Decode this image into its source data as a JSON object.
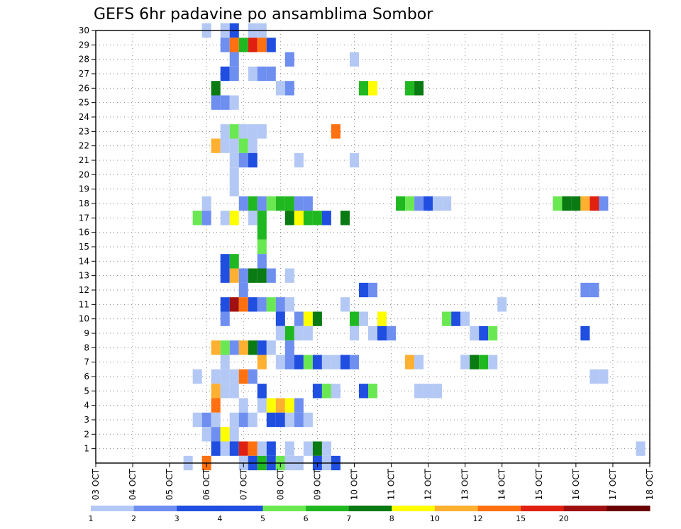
{
  "chart_data": {
    "type": "heatmap",
    "title": "GEFS 6hr padavine po ansamblima Sombor",
    "xlabel": "",
    "ylabel": "",
    "x_ticks": [
      "03 OCT",
      "04 OCT",
      "05 OCT",
      "06 OCT",
      "07 OCT",
      "08 OCT",
      "09 OCT",
      "10 OCT",
      "11 OCT",
      "12 OCT",
      "13 OCT",
      "14 OCT",
      "15 OCT",
      "16 OCT",
      "17 OCT",
      "18 OCT"
    ],
    "y_ticks": [
      1,
      2,
      3,
      4,
      5,
      6,
      7,
      8,
      9,
      10,
      11,
      12,
      13,
      14,
      15,
      16,
      17,
      18,
      19,
      20,
      21,
      22,
      23,
      24,
      25,
      26,
      27,
      28,
      29,
      30
    ],
    "x_range": [
      "03 OCT 00Z",
      "18 OCT 00Z"
    ],
    "y_range": [
      0,
      30
    ],
    "grid": true,
    "color_levels": [
      {
        "label": "1",
        "color": "#b4c8f5"
      },
      {
        "label": "2",
        "color": "#6e8ef0"
      },
      {
        "label": "3",
        "color": "#1f4ee0"
      },
      {
        "label": "4",
        "color": "#1f4ee0"
      },
      {
        "label": "5",
        "color": "#6ae852"
      },
      {
        "label": "6",
        "color": "#20b820"
      },
      {
        "label": "7",
        "color": "#0a7a12"
      },
      {
        "label": "8",
        "color": "#ffff00"
      },
      {
        "label": "10",
        "color": "#ffb030"
      },
      {
        "label": "12",
        "color": "#ff7010"
      },
      {
        "label": "15",
        "color": "#e02010"
      },
      {
        "label": "20",
        "color": "#a01010"
      },
      {
        "label": "",
        "color": "#6a0000"
      }
    ],
    "colorbar_labels": [
      "1",
      "2",
      "3",
      "4",
      "5",
      "6",
      "7",
      "8",
      "10",
      "12",
      "15",
      "20"
    ],
    "cells_note": "each cell: [member, day_offset_from_03OCT(step 0.25 = 6hr), level_index]",
    "cells": [
      [
        30,
        3.0,
        0
      ],
      [
        30,
        3.5,
        0
      ],
      [
        30,
        3.75,
        2
      ],
      [
        30,
        4.25,
        0
      ],
      [
        30,
        4.5,
        0
      ],
      [
        29,
        3.5,
        1
      ],
      [
        29,
        3.75,
        9
      ],
      [
        29,
        4.0,
        5
      ],
      [
        29,
        4.25,
        10
      ],
      [
        29,
        4.5,
        9
      ],
      [
        29,
        4.75,
        2
      ],
      [
        28,
        3.75,
        1
      ],
      [
        28,
        5.25,
        1
      ],
      [
        28,
        7.0,
        0
      ],
      [
        27,
        3.5,
        2
      ],
      [
        27,
        3.75,
        1
      ],
      [
        27,
        4.25,
        0
      ],
      [
        27,
        4.5,
        1
      ],
      [
        27,
        4.75,
        1
      ],
      [
        26,
        3.25,
        6
      ],
      [
        26,
        5.0,
        0
      ],
      [
        26,
        5.25,
        1
      ],
      [
        26,
        7.25,
        5
      ],
      [
        26,
        7.5,
        7
      ],
      [
        26,
        8.5,
        5
      ],
      [
        26,
        8.75,
        6
      ],
      [
        25,
        3.25,
        1
      ],
      [
        25,
        3.5,
        1
      ],
      [
        25,
        3.75,
        0
      ],
      [
        23,
        3.5,
        0
      ],
      [
        23,
        3.75,
        4
      ],
      [
        23,
        4.0,
        0
      ],
      [
        23,
        4.25,
        0
      ],
      [
        23,
        4.5,
        0
      ],
      [
        23,
        6.5,
        9
      ],
      [
        22,
        3.25,
        8
      ],
      [
        22,
        3.5,
        0
      ],
      [
        22,
        3.75,
        0
      ],
      [
        22,
        4.0,
        4
      ],
      [
        22,
        4.25,
        0
      ],
      [
        21,
        3.75,
        0
      ],
      [
        21,
        4.0,
        1
      ],
      [
        21,
        4.25,
        2
      ],
      [
        21,
        5.5,
        0
      ],
      [
        21,
        7.0,
        0
      ],
      [
        20,
        3.75,
        0
      ],
      [
        19,
        3.75,
        0
      ],
      [
        18,
        3.0,
        0
      ],
      [
        18,
        4.0,
        1
      ],
      [
        18,
        4.25,
        5
      ],
      [
        18,
        4.5,
        1
      ],
      [
        18,
        4.75,
        4
      ],
      [
        18,
        5.0,
        5
      ],
      [
        18,
        5.25,
        5
      ],
      [
        18,
        5.5,
        1
      ],
      [
        18,
        5.75,
        1
      ],
      [
        18,
        8.25,
        5
      ],
      [
        18,
        8.5,
        4
      ],
      [
        18,
        8.75,
        1
      ],
      [
        18,
        9.0,
        2
      ],
      [
        18,
        9.25,
        0
      ],
      [
        18,
        9.5,
        0
      ],
      [
        18,
        12.5,
        4
      ],
      [
        18,
        12.75,
        6
      ],
      [
        18,
        13.0,
        6
      ],
      [
        18,
        13.25,
        8
      ],
      [
        18,
        13.5,
        10
      ],
      [
        18,
        13.75,
        1
      ],
      [
        17,
        2.75,
        4
      ],
      [
        17,
        3.0,
        1
      ],
      [
        17,
        3.5,
        0
      ],
      [
        17,
        3.75,
        7
      ],
      [
        17,
        4.25,
        0
      ],
      [
        17,
        4.5,
        5
      ],
      [
        17,
        5.25,
        6
      ],
      [
        17,
        5.5,
        7
      ],
      [
        17,
        5.75,
        5
      ],
      [
        17,
        6.0,
        5
      ],
      [
        17,
        6.25,
        2
      ],
      [
        17,
        6.75,
        6
      ],
      [
        16,
        4.5,
        5
      ],
      [
        15,
        4.5,
        4
      ],
      [
        14,
        3.5,
        2
      ],
      [
        14,
        3.75,
        5
      ],
      [
        14,
        4.5,
        1
      ],
      [
        13,
        3.5,
        2
      ],
      [
        13,
        3.75,
        8
      ],
      [
        13,
        4.0,
        1
      ],
      [
        13,
        4.25,
        6
      ],
      [
        13,
        4.5,
        6
      ],
      [
        13,
        4.75,
        1
      ],
      [
        13,
        5.25,
        0
      ],
      [
        12,
        4.0,
        1
      ],
      [
        12,
        7.25,
        2
      ],
      [
        12,
        7.5,
        1
      ],
      [
        12,
        13.25,
        1
      ],
      [
        12,
        13.5,
        1
      ],
      [
        11,
        3.5,
        2
      ],
      [
        11,
        3.75,
        11
      ],
      [
        11,
        4.0,
        9
      ],
      [
        11,
        4.25,
        2
      ],
      [
        11,
        4.5,
        1
      ],
      [
        11,
        4.75,
        4
      ],
      [
        11,
        5.0,
        1
      ],
      [
        11,
        5.25,
        0
      ],
      [
        11,
        6.75,
        0
      ],
      [
        11,
        11.0,
        0
      ],
      [
        10,
        3.5,
        1
      ],
      [
        10,
        5.0,
        2
      ],
      [
        10,
        5.5,
        1
      ],
      [
        10,
        5.75,
        7
      ],
      [
        10,
        6.0,
        6
      ],
      [
        10,
        7.0,
        5
      ],
      [
        10,
        7.25,
        0
      ],
      [
        10,
        7.75,
        7
      ],
      [
        10,
        9.5,
        4
      ],
      [
        10,
        9.75,
        2
      ],
      [
        10,
        10.0,
        0
      ],
      [
        9,
        5.0,
        0
      ],
      [
        9,
        5.25,
        5
      ],
      [
        9,
        5.5,
        0
      ],
      [
        9,
        5.75,
        0
      ],
      [
        9,
        7.0,
        0
      ],
      [
        9,
        7.5,
        0
      ],
      [
        9,
        7.75,
        2
      ],
      [
        9,
        8.0,
        1
      ],
      [
        9,
        10.25,
        0
      ],
      [
        9,
        10.5,
        2
      ],
      [
        9,
        10.75,
        4
      ],
      [
        9,
        13.25,
        2
      ],
      [
        8,
        3.25,
        8
      ],
      [
        8,
        3.5,
        4
      ],
      [
        8,
        3.75,
        1
      ],
      [
        8,
        4.0,
        8
      ],
      [
        8,
        4.25,
        6
      ],
      [
        8,
        4.5,
        2
      ],
      [
        8,
        4.75,
        0
      ],
      [
        8,
        5.25,
        1
      ],
      [
        7,
        3.5,
        0
      ],
      [
        7,
        4.5,
        8
      ],
      [
        7,
        5.0,
        0
      ],
      [
        7,
        5.25,
        1
      ],
      [
        7,
        5.5,
        2
      ],
      [
        7,
        5.75,
        4
      ],
      [
        7,
        6.0,
        2
      ],
      [
        7,
        6.25,
        0
      ],
      [
        7,
        6.5,
        0
      ],
      [
        7,
        6.75,
        2
      ],
      [
        7,
        7.0,
        1
      ],
      [
        7,
        8.5,
        8
      ],
      [
        7,
        8.75,
        0
      ],
      [
        7,
        10.0,
        0
      ],
      [
        7,
        10.25,
        6
      ],
      [
        7,
        10.5,
        5
      ],
      [
        7,
        10.75,
        0
      ],
      [
        6,
        2.75,
        0
      ],
      [
        6,
        3.25,
        0
      ],
      [
        6,
        3.5,
        0
      ],
      [
        6,
        3.75,
        0
      ],
      [
        6,
        4.0,
        9
      ],
      [
        6,
        4.25,
        1
      ],
      [
        6,
        13.5,
        0
      ],
      [
        6,
        13.75,
        0
      ],
      [
        5,
        3.25,
        8
      ],
      [
        5,
        3.5,
        0
      ],
      [
        5,
        3.75,
        0
      ],
      [
        5,
        4.5,
        2
      ],
      [
        5,
        6.0,
        2
      ],
      [
        5,
        6.25,
        4
      ],
      [
        5,
        6.5,
        0
      ],
      [
        5,
        7.25,
        2
      ],
      [
        5,
        7.5,
        4
      ],
      [
        5,
        8.75,
        0
      ],
      [
        5,
        9.0,
        0
      ],
      [
        5,
        9.25,
        0
      ],
      [
        4,
        3.25,
        9
      ],
      [
        4,
        4.0,
        0
      ],
      [
        4,
        4.5,
        0
      ],
      [
        4,
        4.75,
        7
      ],
      [
        4,
        5.0,
        8
      ],
      [
        4,
        5.25,
        7
      ],
      [
        4,
        5.5,
        1
      ],
      [
        3,
        2.75,
        0
      ],
      [
        3,
        3.0,
        1
      ],
      [
        3,
        3.25,
        0
      ],
      [
        3,
        3.75,
        0
      ],
      [
        3,
        4.0,
        1
      ],
      [
        3,
        4.25,
        0
      ],
      [
        3,
        4.75,
        2
      ],
      [
        3,
        5.0,
        2
      ],
      [
        3,
        5.25,
        0
      ],
      [
        3,
        5.5,
        1
      ],
      [
        3,
        5.75,
        0
      ],
      [
        2,
        3.0,
        0
      ],
      [
        2,
        3.25,
        1
      ],
      [
        2,
        3.5,
        7
      ],
      [
        2,
        3.75,
        0
      ],
      [
        1,
        3.25,
        2
      ],
      [
        1,
        3.5,
        0
      ],
      [
        1,
        3.75,
        2
      ],
      [
        1,
        4.0,
        10
      ],
      [
        1,
        4.25,
        9
      ],
      [
        1,
        4.5,
        0
      ],
      [
        1,
        4.75,
        2
      ],
      [
        1,
        5.25,
        0
      ],
      [
        1,
        5.75,
        0
      ],
      [
        1,
        6.0,
        6
      ],
      [
        1,
        6.25,
        0
      ],
      [
        1,
        14.75,
        0
      ],
      [
        0,
        2.5,
        0
      ],
      [
        0,
        3.0,
        9
      ],
      [
        0,
        4.0,
        0
      ],
      [
        0,
        4.25,
        2
      ],
      [
        0,
        4.5,
        5
      ],
      [
        0,
        4.75,
        2
      ],
      [
        0,
        5.0,
        4
      ],
      [
        0,
        5.25,
        0
      ],
      [
        0,
        5.5,
        0
      ],
      [
        0,
        6.0,
        2
      ],
      [
        0,
        6.25,
        0
      ],
      [
        0,
        6.5,
        2
      ]
    ]
  }
}
